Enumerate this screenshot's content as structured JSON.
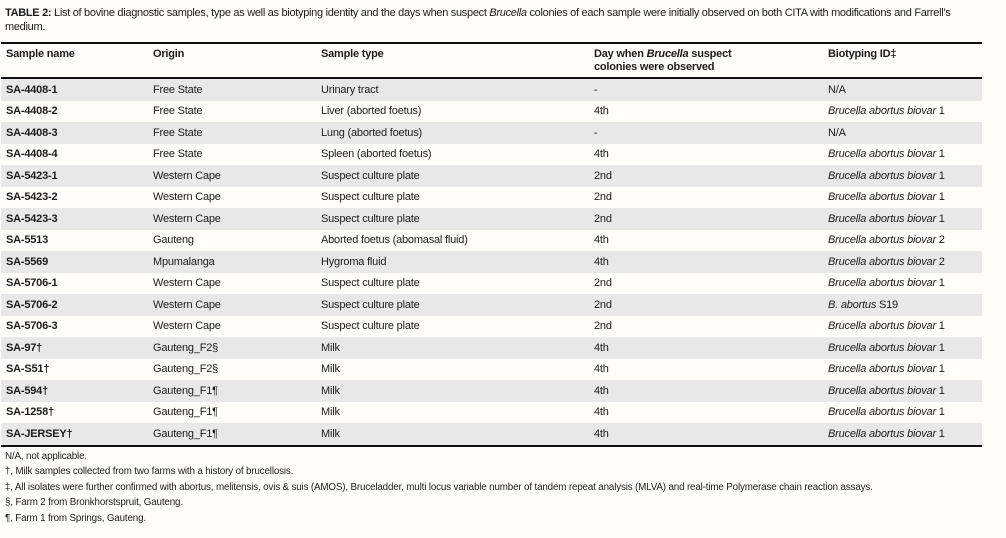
{
  "caption": {
    "label": "TABLE 2:",
    "text_pre": " List of bovine diagnostic samples, type as well as biotyping identity and the days when suspect ",
    "italic": "Brucella",
    "text_post": " colonies of each sample were initially observed on both CITA with modifications and Farrell’s medium."
  },
  "table": {
    "headers": {
      "sample_name": "Sample name",
      "origin": "Origin",
      "sample_type": "Sample type",
      "biotyping": "Biotyping ID‡"
    },
    "header_day": {
      "pre": "Day when ",
      "italic": "Brucella",
      "post": " suspect",
      "line2": "colonies were observed"
    },
    "rows": [
      {
        "name": "SA-4408-1",
        "origin": "Free State",
        "type": "Urinary tract",
        "day": "-",
        "bio_italic": "",
        "bio_plain": "N/A"
      },
      {
        "name": "SA-4408-2",
        "origin": "Free State",
        "type": "Liver (aborted foetus)",
        "day": "4th",
        "bio_italic": "Brucella abortus biovar",
        "bio_plain": " 1"
      },
      {
        "name": "SA-4408-3",
        "origin": "Free State",
        "type": "Lung (aborted foetus)",
        "day": "-",
        "bio_italic": "",
        "bio_plain": "N/A"
      },
      {
        "name": "SA-4408-4",
        "origin": "Free State",
        "type": "Spleen (aborted foetus)",
        "day": "4th",
        "bio_italic": "Brucella abortus biovar",
        "bio_plain": " 1"
      },
      {
        "name": "SA-5423-1",
        "origin": "Western Cape",
        "type": "Suspect culture plate",
        "day": "2nd",
        "bio_italic": "Brucella abortus biovar",
        "bio_plain": " 1"
      },
      {
        "name": "SA-5423-2",
        "origin": "Western Cape",
        "type": "Suspect culture plate",
        "day": "2nd",
        "bio_italic": "Brucella abortus biovar",
        "bio_plain": " 1"
      },
      {
        "name": "SA-5423-3",
        "origin": "Western Cape",
        "type": "Suspect culture plate",
        "day": "2nd",
        "bio_italic": "Brucella abortus biovar",
        "bio_plain": " 1"
      },
      {
        "name": "SA-5513",
        "origin": "Gauteng",
        "type": "Aborted foetus (abomasal fluid)",
        "day": "4th",
        "bio_italic": "Brucella abortus biovar",
        "bio_plain": " 2"
      },
      {
        "name": "SA-5569",
        "origin": "Mpumalanga",
        "type": "Hygroma fluid",
        "day": "4th",
        "bio_italic": "Brucella abortus biovar",
        "bio_plain": " 2"
      },
      {
        "name": "SA-5706-1",
        "origin": "Western Cape",
        "type": "Suspect culture plate",
        "day": "2nd",
        "bio_italic": "Brucella abortus biovar",
        "bio_plain": " 1"
      },
      {
        "name": "SA-5706-2",
        "origin": "Western Cape",
        "type": "Suspect culture plate",
        "day": "2nd",
        "bio_italic": "B. abortus",
        "bio_plain": " S19"
      },
      {
        "name": "SA-5706-3",
        "origin": "Western Cape",
        "type": "Suspect culture plate",
        "day": "2nd",
        "bio_italic": "Brucella abortus biovar",
        "bio_plain": " 1"
      },
      {
        "name": "SA-97†",
        "origin": "Gauteng_F2§",
        "type": "Milk",
        "day": "4th",
        "bio_italic": "Brucella abortus biovar",
        "bio_plain": " 1"
      },
      {
        "name": "SA-S51†",
        "origin": "Gauteng_F2§",
        "type": "Milk",
        "day": "4th",
        "bio_italic": "Brucella abortus biovar",
        "bio_plain": " 1"
      },
      {
        "name": "SA-594†",
        "origin": "Gauteng_F1¶",
        "type": "Milk",
        "day": "4th",
        "bio_italic": "Brucella abortus biovar",
        "bio_plain": " 1"
      },
      {
        "name": "SA-1258†",
        "origin": "Gauteng_F1¶",
        "type": "Milk",
        "day": "4th",
        "bio_italic": "Brucella abortus biovar",
        "bio_plain": " 1"
      },
      {
        "name": "SA-JERSEY†",
        "origin": "Gauteng_F1¶",
        "type": "Milk",
        "day": "4th",
        "bio_italic": "Brucella abortus biovar",
        "bio_plain": " 1"
      }
    ]
  },
  "footnotes": [
    "N/A, not applicable.",
    "†, Milk samples collected from two farms with a history of brucellosis.",
    "‡, All isolates were further confirmed with abortus, melitensis, ovis & suis (AMOS), Bruceladder, multi locus variable number of tandem repeat analysis (MLVA) and real-time Polymerase chain reaction assays.",
    "§, Farm 2 from Bronkhorstspruit, Gauteng.",
    "¶, Farm 1 from Springs, Gauteng."
  ],
  "colors": {
    "row_stripe": "#e8e8e8",
    "rule": "#111111",
    "text": "#1c1c1c",
    "background": "#fffefb"
  }
}
